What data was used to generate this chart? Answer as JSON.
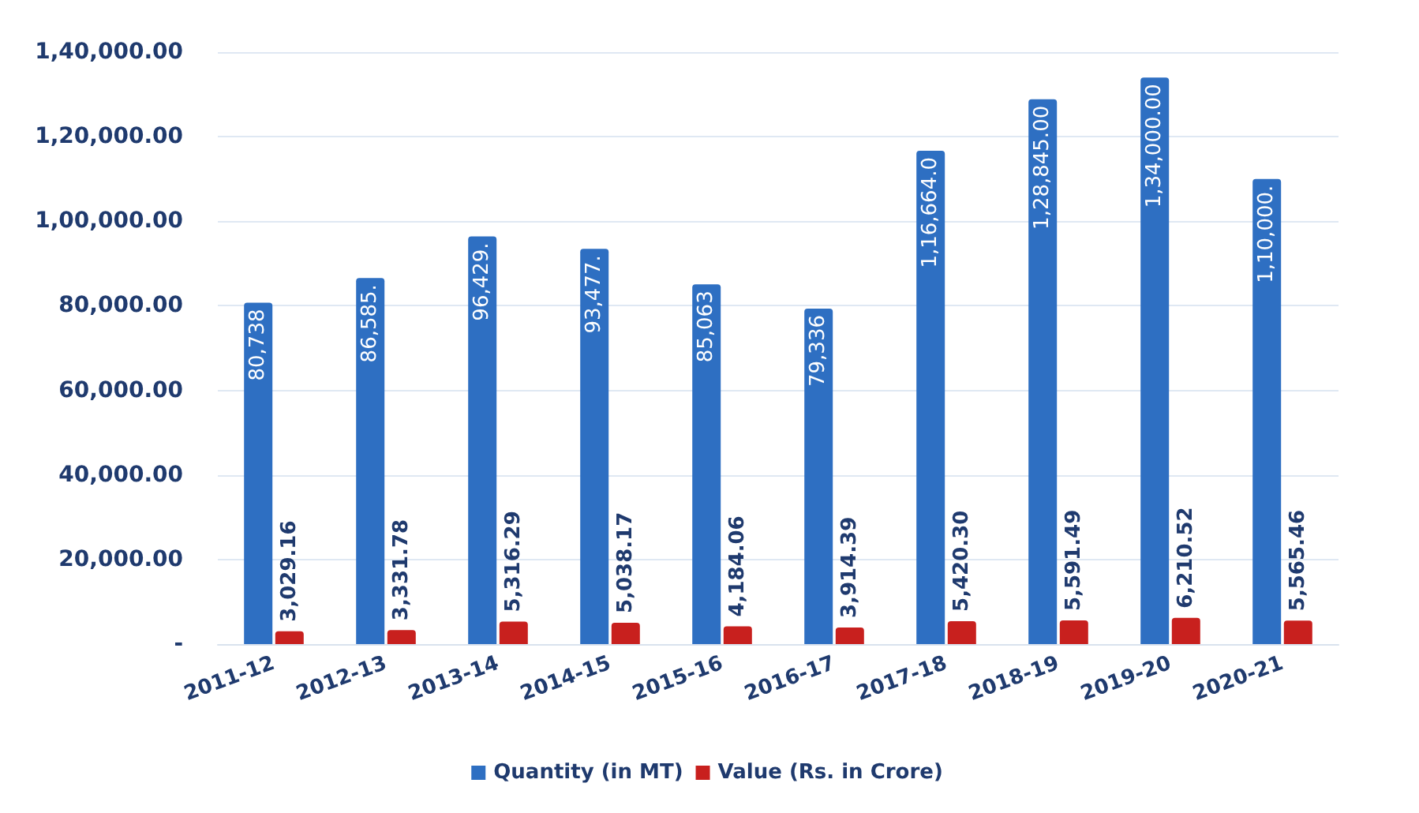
{
  "chart_data": {
    "type": "bar",
    "categories": [
      "2011-12",
      "2012-13",
      "2013-14",
      "2014-15",
      "2015-16",
      "2016-17",
      "2017-18",
      "2018-19",
      "2019-20",
      "2020-21"
    ],
    "series": [
      {
        "name": "Quantity (in MT)",
        "color": "#2e6fc2",
        "values": [
          80738,
          86585,
          96429,
          93477,
          85063,
          79336,
          116664,
          128845,
          134000,
          110000
        ],
        "value_labels": [
          "80,738",
          "86,585.",
          "96,429.",
          "93,477.",
          "85,063",
          "79,336",
          "1,16,664.0",
          "1,28,845.00",
          "1,34,000.00",
          "1,10,000."
        ]
      },
      {
        "name": "Value (Rs. in Crore)",
        "color": "#c8201e",
        "values": [
          3029.16,
          3331.78,
          5316.29,
          5038.17,
          4184.06,
          3914.39,
          5420.3,
          5591.49,
          6210.52,
          5565.46
        ],
        "value_labels": [
          "3,029.16",
          "3,331.78",
          "5,316.29",
          "5,038.17",
          "4,184.06",
          "3,914.39",
          "5,420.30",
          "5,591.49",
          "6,210.52",
          "5,565.46"
        ]
      }
    ],
    "ylim": [
      0,
      140000
    ],
    "yticks": [
      {
        "value": 0,
        "label": "-"
      },
      {
        "value": 20000,
        "label": "20,000.00"
      },
      {
        "value": 40000,
        "label": "40,000.00"
      },
      {
        "value": 60000,
        "label": "60,000.00"
      },
      {
        "value": 80000,
        "label": "80,000.00"
      },
      {
        "value": 100000,
        "label": "1,00,000.00"
      },
      {
        "value": 120000,
        "label": "1,20,000.00"
      },
      {
        "value": 140000,
        "label": "1,40,000.00"
      }
    ],
    "grid": "y",
    "legend": "bottom"
  }
}
